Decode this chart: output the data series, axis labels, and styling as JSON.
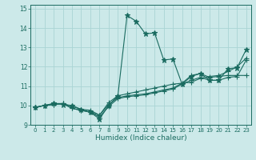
{
  "xlabel": "Humidex (Indice chaleur)",
  "bg_color": "#cce9e9",
  "grid_color": "#aad4d4",
  "line_color": "#1a6b60",
  "xlim": [
    -0.5,
    23.5
  ],
  "ylim": [
    9.0,
    15.2
  ],
  "yticks": [
    9,
    10,
    11,
    12,
    13,
    14,
    15
  ],
  "xticks": [
    0,
    1,
    2,
    3,
    4,
    5,
    6,
    7,
    8,
    9,
    10,
    11,
    12,
    13,
    14,
    15,
    16,
    17,
    18,
    19,
    20,
    21,
    22,
    23
  ],
  "series": [
    [
      9.9,
      10.0,
      10.1,
      10.05,
      10.0,
      9.8,
      9.65,
      9.3,
      10.0,
      10.5,
      14.65,
      14.35,
      13.7,
      13.75,
      12.35,
      12.4,
      11.1,
      11.5,
      11.65,
      11.3,
      11.3,
      11.9,
      11.95,
      12.9
    ],
    [
      9.9,
      10.0,
      10.05,
      10.1,
      9.85,
      9.75,
      9.65,
      9.5,
      10.05,
      10.4,
      10.5,
      10.55,
      10.6,
      10.7,
      10.8,
      10.9,
      11.15,
      11.55,
      11.65,
      11.45,
      11.5,
      11.55,
      11.55,
      11.55
    ],
    [
      9.9,
      10.0,
      10.05,
      10.1,
      9.85,
      9.75,
      9.65,
      9.4,
      9.95,
      10.35,
      10.45,
      10.5,
      10.55,
      10.65,
      10.75,
      10.85,
      11.1,
      11.3,
      11.45,
      11.3,
      11.3,
      11.45,
      11.5,
      12.35
    ],
    [
      9.9,
      10.0,
      10.1,
      10.1,
      9.95,
      9.8,
      9.75,
      9.5,
      10.15,
      10.5,
      10.6,
      10.7,
      10.8,
      10.9,
      11.0,
      11.1,
      11.15,
      11.2,
      11.4,
      11.5,
      11.55,
      11.75,
      12.0,
      12.45
    ]
  ],
  "markers": [
    "*",
    "+",
    "+",
    "+"
  ],
  "markersizes": [
    4.5,
    4.0,
    4.0,
    4.0
  ]
}
